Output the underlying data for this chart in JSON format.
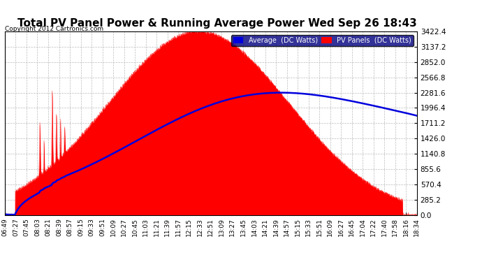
{
  "title": "Total PV Panel Power & Running Average Power Wed Sep 26 18:43",
  "copyright": "Copyright 2012 Cartronics.com",
  "legend_avg": "Average  (DC Watts)",
  "legend_pv": "PV Panels  (DC Watts)",
  "ymax": 3422.4,
  "ymin": 0.0,
  "yticks": [
    0.0,
    285.2,
    570.4,
    855.6,
    1140.8,
    1426.0,
    1711.2,
    1996.4,
    2281.6,
    2566.8,
    2852.0,
    3137.2,
    3422.4
  ],
  "bg_color": "#ffffff",
  "plot_bg_color": "#ffffff",
  "grid_color": "#aaaaaa",
  "pv_color": "#ff0000",
  "avg_color": "#0000dd",
  "title_fontsize": 11,
  "xtick_labels": [
    "06:49",
    "07:27",
    "07:45",
    "08:03",
    "08:21",
    "08:39",
    "08:57",
    "09:15",
    "09:33",
    "09:51",
    "10:09",
    "10:27",
    "10:45",
    "11:03",
    "11:21",
    "11:39",
    "11:57",
    "12:15",
    "12:33",
    "12:51",
    "13:09",
    "13:27",
    "13:45",
    "14:03",
    "14:21",
    "14:39",
    "14:57",
    "15:15",
    "15:33",
    "15:51",
    "16:09",
    "16:27",
    "16:45",
    "17:04",
    "17:22",
    "17:40",
    "17:58",
    "18:16",
    "18:34"
  ]
}
